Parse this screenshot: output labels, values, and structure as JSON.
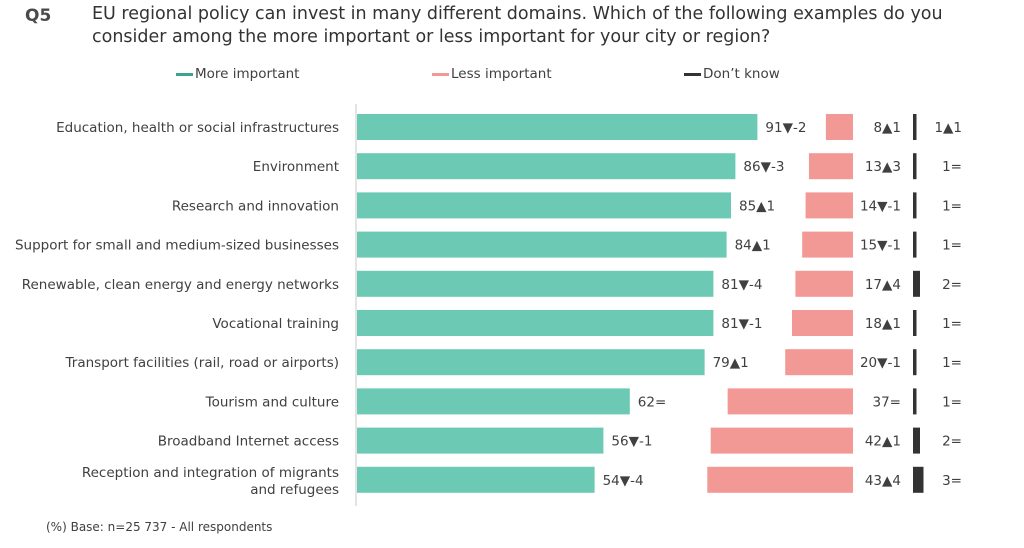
{
  "question": {
    "number": "Q5",
    "text": "EU regional policy can invest in many different  domains. Which of the following examples do you consider among the more important or less important for your city or region?"
  },
  "legend": {
    "more": "More important",
    "less": "Less important",
    "dont_know": "Don’t know"
  },
  "colors": {
    "more": "#6cc9b4",
    "less": "#f29895",
    "dont_know": "#333333",
    "axis": "#c8c8c8"
  },
  "chart_data": {
    "type": "bar",
    "stacked": false,
    "orientation": "horizontal",
    "categories": [
      "Education, health or social infrastructures",
      "Environment",
      "Research and innovation",
      "Support for small and medium-sized businesses",
      "Renewable, clean energy and energy networks",
      "Vocational training",
      "Transport facilities (rail, road or airports)",
      "Tourism and culture",
      "Broadband Internet access",
      "Reception and integration of migrants and refugees"
    ],
    "series": [
      {
        "name": "More important",
        "values": [
          91,
          86,
          85,
          84,
          81,
          81,
          79,
          62,
          56,
          54
        ],
        "labels": [
          "91▼-2",
          "86▼-3",
          "85▲1",
          "84▲1",
          "81▼-4",
          "81▼-1",
          "79▲1",
          "62=",
          "56▼-1",
          "54▼-4"
        ]
      },
      {
        "name": "Less important",
        "values": [
          8,
          13,
          14,
          15,
          17,
          18,
          20,
          37,
          42,
          43
        ],
        "labels": [
          "8▲1",
          "13▲3",
          "14▼-1",
          "15▼-1",
          "17▲4",
          "18▲1",
          "20▼-1",
          "37=",
          "42▲1",
          "43▲4"
        ]
      },
      {
        "name": "Don’t know",
        "values": [
          1,
          1,
          1,
          1,
          2,
          1,
          1,
          1,
          2,
          3
        ],
        "labels": [
          "1▲1",
          "1=",
          "1=",
          "1=",
          "2=",
          "1=",
          "1=",
          "1=",
          "2=",
          "3="
        ]
      }
    ]
  },
  "footnote": "(%) Base: n=25 737 - All respondents"
}
